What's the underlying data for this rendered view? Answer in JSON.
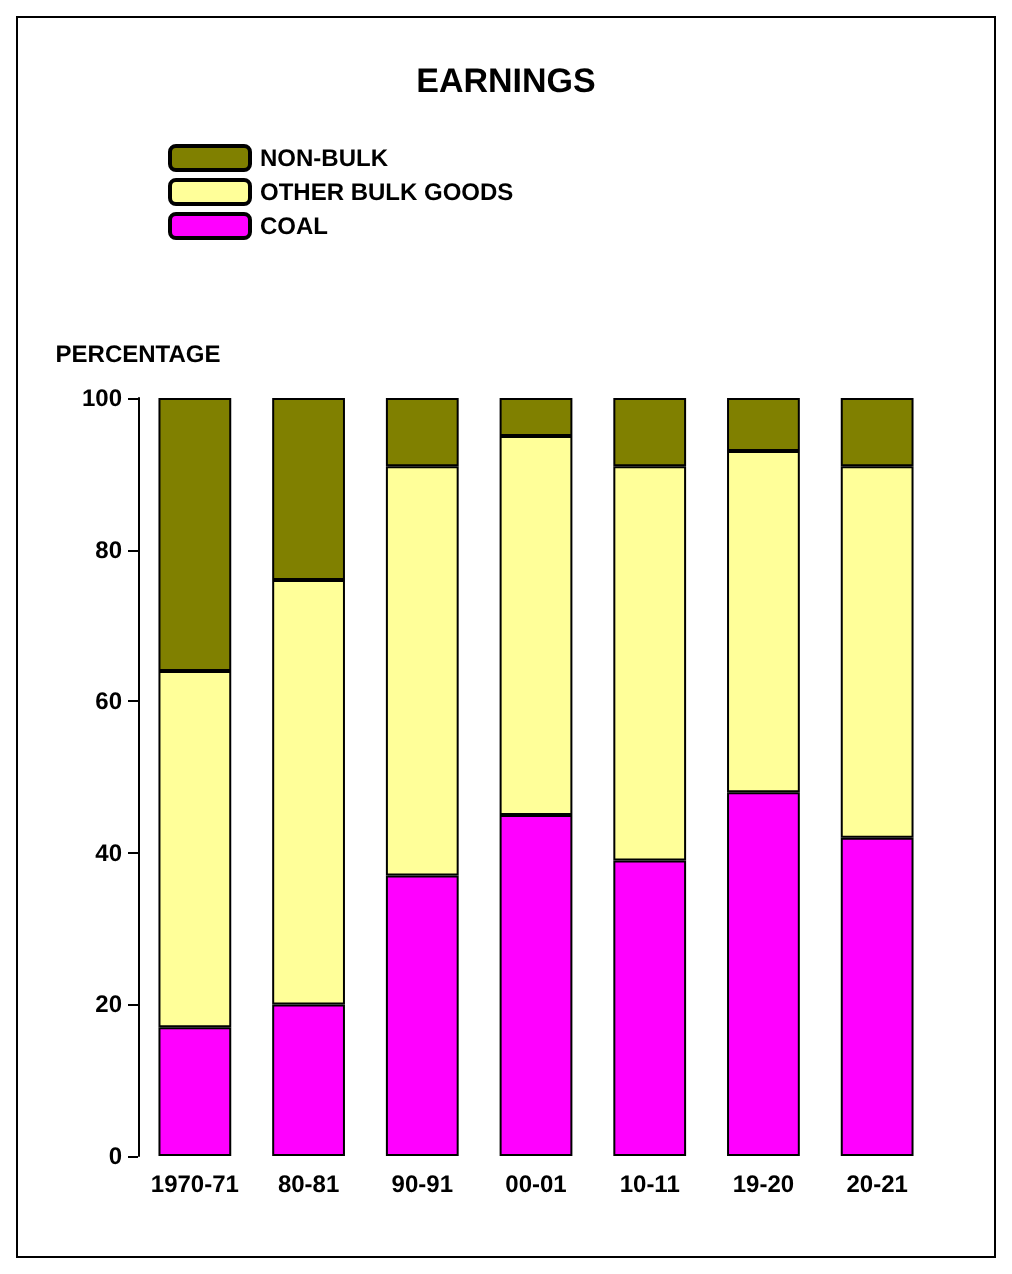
{
  "chart_data": {
    "type": "bar",
    "title": "EARNINGS",
    "ylabel": "PERCENTAGE",
    "stacked": true,
    "legend": "top left",
    "grid": false,
    "categories": [
      "1970-71",
      "80-81",
      "90-91",
      "00-01",
      "10-11",
      "19-20",
      "20-21"
    ],
    "ylim": [
      0,
      100
    ],
    "yticks": [
      0,
      20,
      40,
      60,
      80,
      100
    ],
    "series": [
      {
        "name": "COAL",
        "color": "#ff00ff",
        "values": [
          17,
          20,
          37,
          45,
          39,
          48,
          42
        ]
      },
      {
        "name": "OTHER BULK GOODS",
        "color": "#ffff99",
        "values": [
          47,
          56,
          54,
          50,
          52,
          45,
          49
        ]
      },
      {
        "name": "NON-BULK",
        "color": "#808000",
        "values": [
          36,
          24,
          9,
          5,
          9,
          7,
          9
        ]
      }
    ]
  }
}
